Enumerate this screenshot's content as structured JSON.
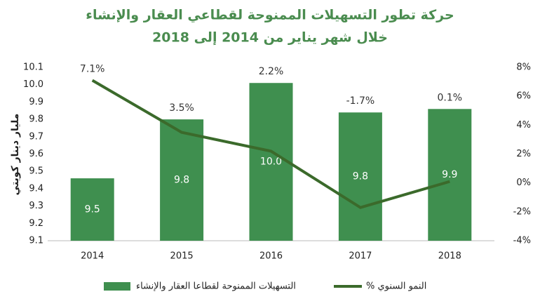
{
  "chart_data": {
    "type": "bar-line",
    "title": "حركة تطور التسهيلات الممنوحة لقطاعي العقار والإنشاء",
    "subtitle": "خلال شهر يناير من 2014 إلى 2018",
    "ylabel": "مليار دينار كويتي",
    "categories": [
      "2014",
      "2015",
      "2016",
      "2017",
      "2018"
    ],
    "series": [
      {
        "name": "التسهيلات الممنوحة لقطاعا العقار والإنشاء",
        "type": "bar",
        "color": "#3f8f4f",
        "values": [
          9.46,
          9.8,
          10.01,
          9.84,
          9.86
        ],
        "value_labels": [
          "9.5",
          "9.8",
          "10.0",
          "9.8",
          "9.9"
        ]
      },
      {
        "name": "% النمو السنوي",
        "type": "line",
        "axis": "y2",
        "color": "#3b6a2b",
        "values": [
          7.1,
          3.5,
          2.2,
          -1.7,
          0.1
        ],
        "value_labels": [
          "7.1%",
          "3.5%",
          "2.2%",
          "-1.7%",
          "0.1%"
        ]
      }
    ],
    "ylim": [
      9.1,
      10.1
    ],
    "yticks": [
      9.1,
      9.2,
      9.3,
      9.4,
      9.5,
      9.6,
      9.7,
      9.8,
      9.9,
      {
        "value": 10,
        "label": "10.0"
      },
      10.1
    ],
    "y2lim": [
      -4,
      8
    ],
    "y2ticks": [
      {
        "value": -4,
        "label": "-4%"
      },
      {
        "value": -2,
        "label": "-2%"
      },
      {
        "value": 0,
        "label": "0%"
      },
      {
        "value": 2,
        "label": "2%"
      },
      {
        "value": 4,
        "label": "4%"
      },
      {
        "value": 6,
        "label": "6%"
      },
      {
        "value": 8,
        "label": "8%"
      }
    ]
  }
}
